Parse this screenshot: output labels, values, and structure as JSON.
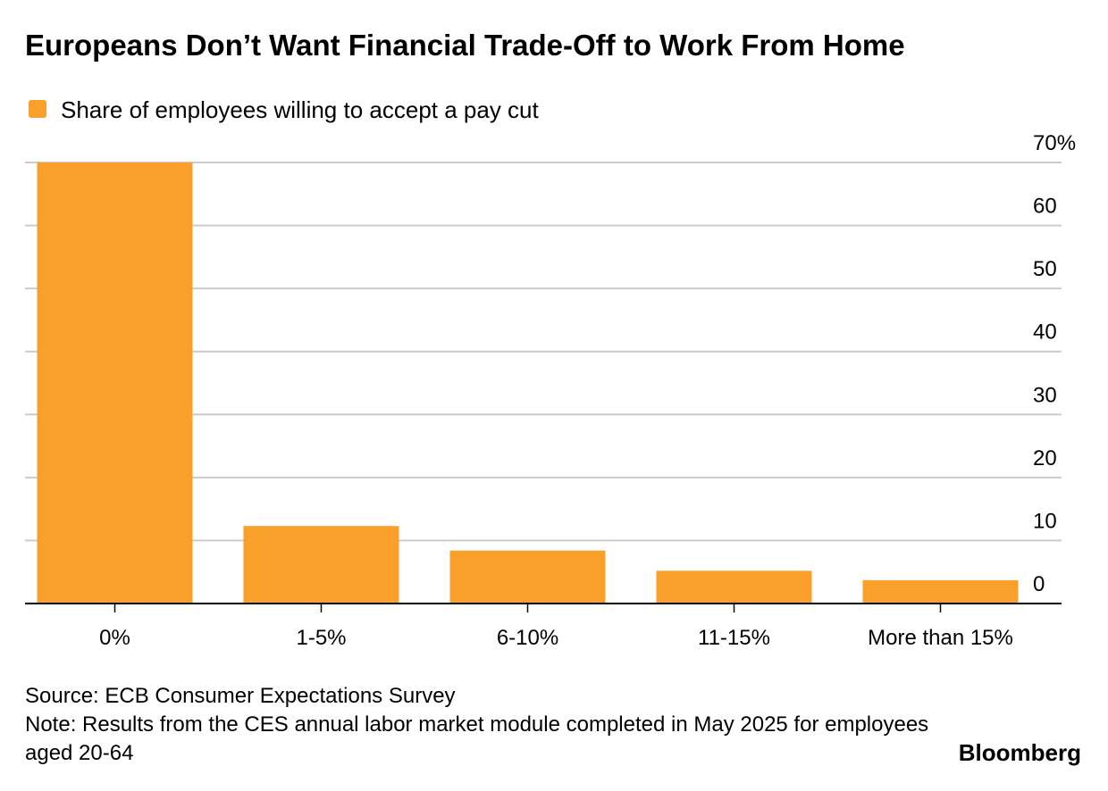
{
  "chart_data": {
    "type": "bar",
    "title": "Europeans Don’t Want Financial Trade-Off to Work From Home",
    "categories": [
      "0%",
      "1-5%",
      "6-10%",
      "11-15%",
      "More than 15%"
    ],
    "series": [
      {
        "name": "Share of employees willing to accept a pay cut",
        "color": "#fa9f2a",
        "values": [
          70,
          12.3,
          8.4,
          5.2,
          3.7
        ]
      }
    ],
    "ylim": [
      0,
      70
    ],
    "yticks": [
      0,
      10,
      20,
      30,
      40,
      50,
      60,
      {
        "value": 70,
        "label": "70%"
      }
    ],
    "grid": true,
    "source": "Source: ECB Consumer Expectations Survey",
    "note": "Note: Results from the CES annual labor market module completed in May 2025 for employees aged 20-64",
    "brand": "Bloomberg"
  }
}
